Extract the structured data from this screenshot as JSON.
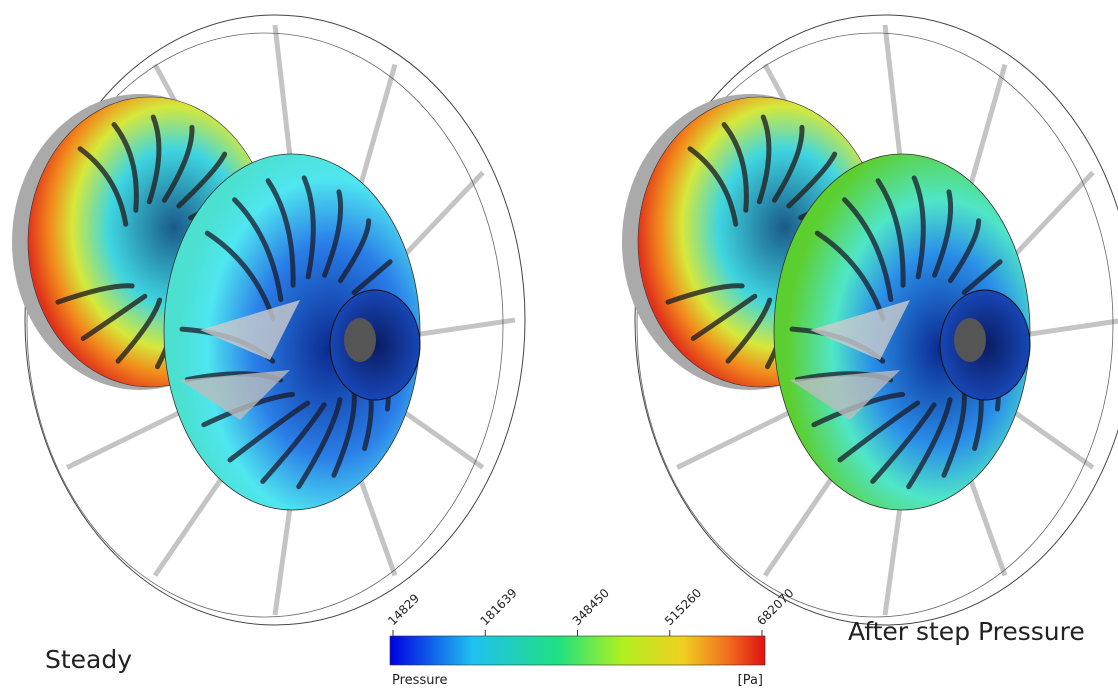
{
  "panels": [
    {
      "label": "Steady"
    },
    {
      "label": "After step Pressure"
    }
  ],
  "colorbar": {
    "title": "Pressure",
    "unit": "[Pa]",
    "ticks": [
      14829,
      181639,
      348450,
      515260,
      682070
    ]
  }
}
